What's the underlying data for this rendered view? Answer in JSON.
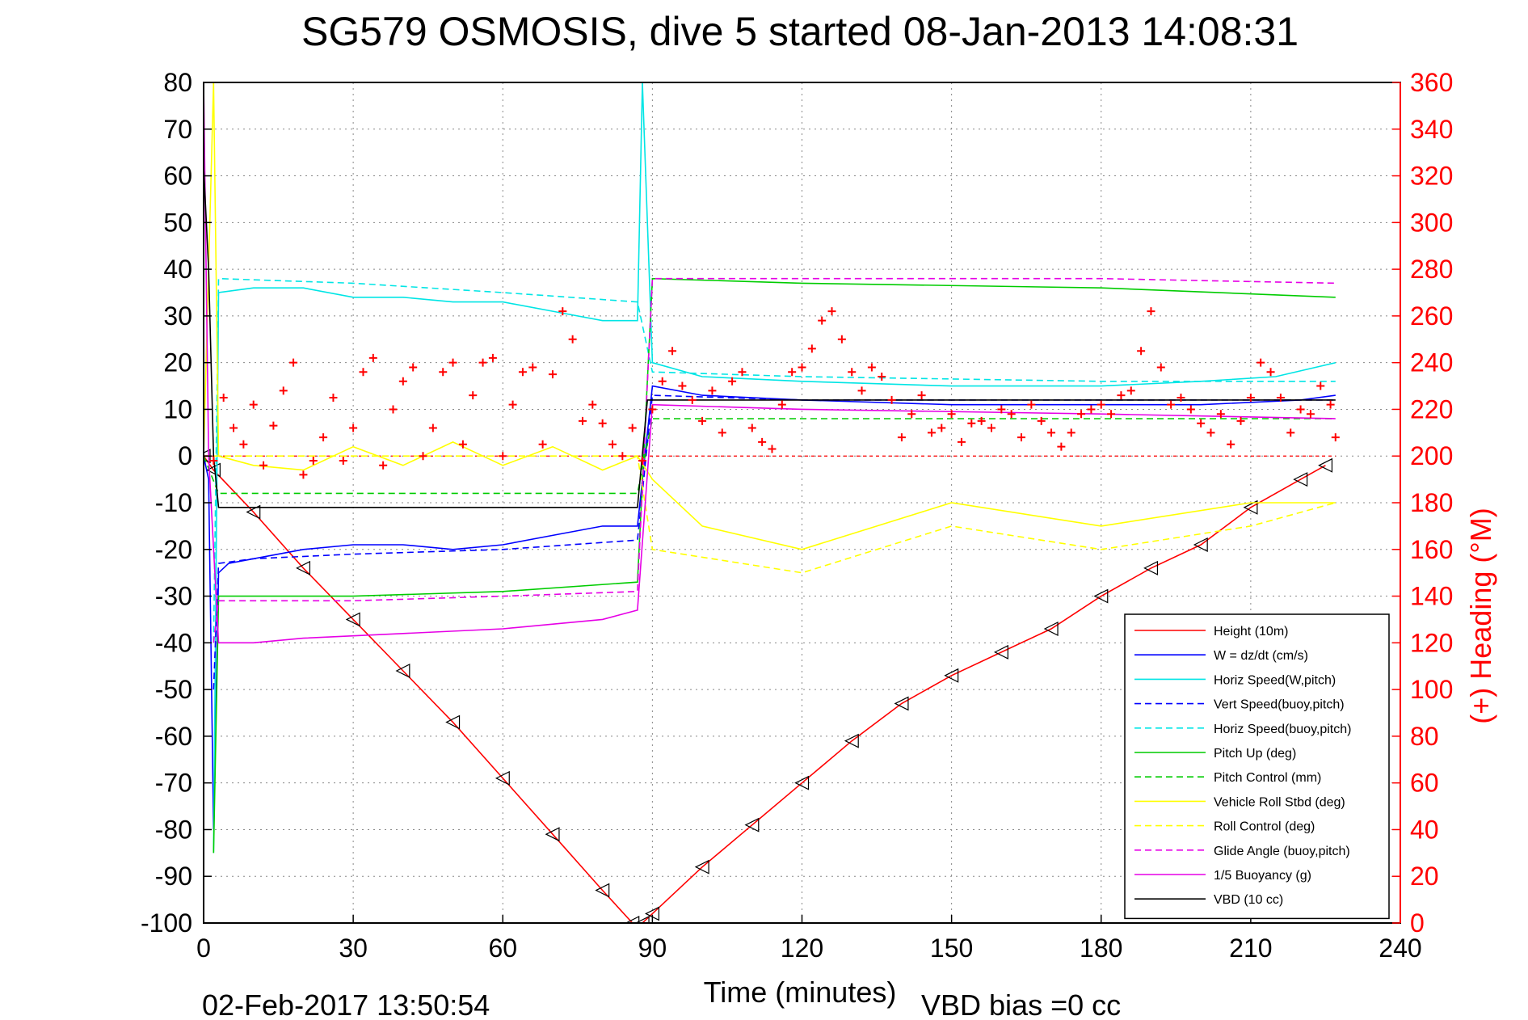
{
  "chart_data": {
    "type": "line",
    "title": "SG579 OSMOSIS, dive 5 started 08-Jan-2013 14:08:31",
    "xlabel": "Time (minutes)",
    "ylabel_right": "(+) Heading (°M)",
    "timestamp": "02-Feb-2017 13:50:54",
    "vbd_note": "VBD bias =0 cc",
    "xlim": [
      0,
      240
    ],
    "ylim_left": [
      -100,
      80
    ],
    "ylim_right": [
      0,
      360
    ],
    "x_ticks": [
      "0",
      "30",
      "60",
      "90",
      "120",
      "150",
      "180",
      "210",
      "240"
    ],
    "y_ticks_left": [
      "80",
      "70",
      "60",
      "50",
      "40",
      "30",
      "20",
      "10",
      "0",
      "-10",
      "-20",
      "-30",
      "-40",
      "-50",
      "-60",
      "-70",
      "-80",
      "-90",
      "-100"
    ],
    "y_ticks_right": [
      "360",
      "340",
      "320",
      "300",
      "280",
      "260",
      "240",
      "220",
      "200",
      "180",
      "160",
      "140",
      "120",
      "100",
      "80",
      "60",
      "40",
      "20",
      "0"
    ],
    "grid": true,
    "legend_position": "bottom-right",
    "right_axis_color": "#ff0000",
    "series": [
      {
        "name": "Height (10m)",
        "color": "#ff0000",
        "style": "solid",
        "marker": "triangle",
        "x": [
          0,
          2,
          10,
          20,
          30,
          40,
          50,
          60,
          70,
          80,
          86,
          88,
          90,
          100,
          110,
          120,
          130,
          140,
          150,
          160,
          170,
          180,
          190,
          200,
          210,
          220,
          225
        ],
        "y": [
          0,
          -3,
          -12,
          -24,
          -35,
          -46,
          -57,
          -69,
          -81,
          -93,
          -100,
          -100,
          -98,
          -88,
          -79,
          -70,
          -61,
          -53,
          -47,
          -42,
          -37,
          -30,
          -24,
          -19,
          -11,
          -5,
          -2
        ]
      },
      {
        "name": "W = dz/dt (cm/s)",
        "color": "#0000ff",
        "style": "solid",
        "x": [
          0,
          1,
          2,
          3,
          5,
          10,
          20,
          30,
          40,
          50,
          60,
          70,
          80,
          87,
          90,
          100,
          120,
          150,
          180,
          200,
          220,
          227
        ],
        "y": [
          0,
          -5,
          -80,
          -25,
          -23,
          -22,
          -20,
          -19,
          -19,
          -20,
          -19,
          -17,
          -15,
          -15,
          15,
          13,
          12,
          11,
          11,
          11,
          12,
          13
        ]
      },
      {
        "name": "Horiz Speed(W,pitch)",
        "color": "#00e5e5",
        "style": "solid",
        "x": [
          2,
          3,
          10,
          20,
          30,
          40,
          50,
          60,
          70,
          80,
          87,
          88,
          90,
          100,
          120,
          150,
          180,
          200,
          215,
          227
        ],
        "y": [
          -85,
          35,
          36,
          36,
          34,
          34,
          33,
          33,
          31,
          29,
          29,
          80,
          20,
          17,
          16,
          15,
          15,
          16,
          17,
          20
        ]
      },
      {
        "name": "Vert Speed(buoy,pitch)",
        "color": "#0000ff",
        "style": "dashed",
        "x": [
          2,
          3,
          10,
          30,
          60,
          87,
          90,
          120,
          180,
          227
        ],
        "y": [
          -50,
          -23,
          -22,
          -21,
          -20,
          -18,
          13,
          12,
          12,
          12
        ]
      },
      {
        "name": "Horiz Speed(buoy,pitch)",
        "color": "#00e5e5",
        "style": "dashed",
        "x": [
          2,
          3,
          30,
          60,
          87,
          90,
          120,
          180,
          227
        ],
        "y": [
          -40,
          38,
          37,
          35,
          33,
          18,
          17,
          16,
          16
        ]
      },
      {
        "name": "Pitch Up (deg)",
        "color": "#00cc00",
        "style": "solid",
        "x": [
          2,
          3,
          30,
          60,
          87,
          90,
          120,
          180,
          227
        ],
        "y": [
          -85,
          -30,
          -30,
          -29,
          -27,
          38,
          37,
          36,
          34
        ]
      },
      {
        "name": "Pitch Control (mm)",
        "color": "#00cc00",
        "style": "dashed",
        "x": [
          0,
          3,
          30,
          60,
          87,
          90,
          120,
          180,
          227
        ],
        "y": [
          0,
          -8,
          -8,
          -8,
          -8,
          8,
          8,
          8,
          8
        ]
      },
      {
        "name": "Vehicle Roll Stbd (deg)",
        "color": "#ffff00",
        "style": "solid",
        "x": [
          0,
          2,
          3,
          10,
          20,
          30,
          40,
          50,
          60,
          70,
          80,
          87,
          90,
          100,
          120,
          150,
          180,
          210,
          227
        ],
        "y": [
          0,
          80,
          0,
          -2,
          -3,
          2,
          -2,
          3,
          -2,
          2,
          -3,
          0,
          -5,
          -15,
          -20,
          -10,
          -15,
          -10,
          -10
        ]
      },
      {
        "name": "Roll Control (deg)",
        "color": "#ffff00",
        "style": "dashed",
        "x": [
          0,
          3,
          30,
          60,
          87,
          90,
          120,
          150,
          180,
          210,
          227
        ],
        "y": [
          0,
          0,
          0,
          0,
          0,
          -20,
          -25,
          -15,
          -20,
          -15,
          -10
        ]
      },
      {
        "name": "Glide Angle (buoy,pitch)",
        "color": "#e600e6",
        "style": "dashed",
        "x": [
          2,
          3,
          30,
          60,
          87,
          90,
          120,
          180,
          227
        ],
        "y": [
          -40,
          -31,
          -31,
          -30,
          -29,
          38,
          38,
          38,
          37
        ]
      },
      {
        "name": "1/5 Buoyancy (g)",
        "color": "#e600e6",
        "style": "solid",
        "x": [
          0,
          1,
          3,
          10,
          20,
          40,
          60,
          80,
          87,
          90,
          120,
          180,
          227
        ],
        "y": [
          80,
          0,
          -40,
          -40,
          -39,
          -38,
          -37,
          -35,
          -33,
          11,
          10,
          9,
          8
        ]
      },
      {
        "name": "VBD (10 cc)",
        "color": "#000000",
        "style": "solid",
        "x": [
          0,
          1,
          2,
          3,
          87,
          89,
          120,
          180,
          227
        ],
        "y": [
          62,
          40,
          0,
          -11,
          -11,
          12,
          12,
          12,
          12
        ]
      }
    ],
    "heading": {
      "name": "Heading",
      "color": "#ff0000",
      "marker": "plus",
      "x": [
        0,
        2,
        4,
        6,
        8,
        10,
        12,
        14,
        16,
        18,
        20,
        22,
        24,
        26,
        28,
        30,
        32,
        34,
        36,
        38,
        40,
        42,
        44,
        46,
        48,
        50,
        52,
        54,
        56,
        58,
        60,
        62,
        64,
        66,
        68,
        70,
        72,
        74,
        76,
        78,
        80,
        82,
        84,
        86,
        88,
        90,
        92,
        94,
        96,
        98,
        100,
        102,
        104,
        106,
        108,
        110,
        112,
        114,
        116,
        118,
        120,
        122,
        124,
        126,
        128,
        130,
        132,
        134,
        136,
        138,
        140,
        142,
        144,
        146,
        148,
        150,
        152,
        154,
        156,
        158,
        160,
        162,
        164,
        166,
        168,
        170,
        172,
        174,
        176,
        178,
        180,
        182,
        184,
        186,
        188,
        190,
        192,
        194,
        196,
        198,
        200,
        202,
        204,
        206,
        208,
        210,
        212,
        214,
        216,
        218,
        220,
        222,
        224,
        226,
        227
      ],
      "y": [
        200,
        198,
        225,
        212,
        205,
        222,
        196,
        213,
        228,
        240,
        192,
        198,
        208,
        225,
        198,
        212,
        236,
        242,
        196,
        220,
        232,
        238,
        200,
        212,
        236,
        240,
        205,
        226,
        240,
        242,
        200,
        222,
        236,
        238,
        205,
        235,
        262,
        250,
        215,
        222,
        214,
        205,
        200,
        212,
        198,
        220,
        232,
        245,
        230,
        224,
        215,
        228,
        210,
        232,
        236,
        212,
        206,
        203,
        222,
        236,
        238,
        246,
        258,
        262,
        250,
        236,
        228,
        238,
        234,
        224,
        208,
        218,
        226,
        210,
        212,
        218,
        206,
        214,
        215,
        212,
        220,
        218,
        208,
        222,
        215,
        210,
        204,
        210,
        218,
        220,
        222,
        218,
        226,
        228,
        245,
        262,
        238,
        222,
        225,
        220,
        214,
        210,
        218,
        205,
        215,
        225,
        240,
        236,
        225,
        210,
        220,
        218,
        230,
        222,
        208
      ]
    }
  }
}
